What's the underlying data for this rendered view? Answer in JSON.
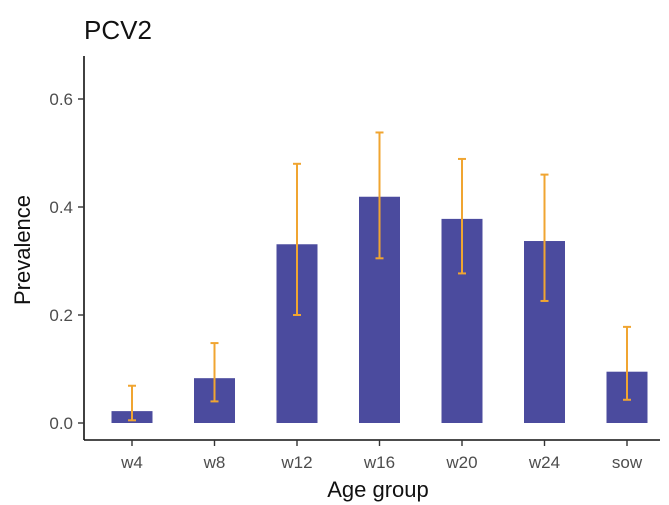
{
  "chart_data": {
    "type": "bar",
    "title": "PCV2",
    "xlabel": "Age group",
    "ylabel": "Prevalence",
    "categories": [
      "w4",
      "w8",
      "w12",
      "w16",
      "w20",
      "w24",
      "sow"
    ],
    "values": [
      0.022,
      0.083,
      0.331,
      0.419,
      0.378,
      0.337,
      0.095
    ],
    "error_low": [
      0.005,
      0.04,
      0.2,
      0.305,
      0.277,
      0.226,
      0.043
    ],
    "error_high": [
      0.069,
      0.148,
      0.48,
      0.538,
      0.489,
      0.46,
      0.178
    ],
    "ylim": [
      0,
      0.68
    ],
    "yticks": [
      0.0,
      0.2,
      0.4,
      0.6
    ],
    "ytick_labels": [
      "0.0",
      "0.2",
      "0.4",
      "0.6"
    ],
    "grid": false,
    "bar_color": "#4b4b9e",
    "error_color": "#f0a531"
  }
}
